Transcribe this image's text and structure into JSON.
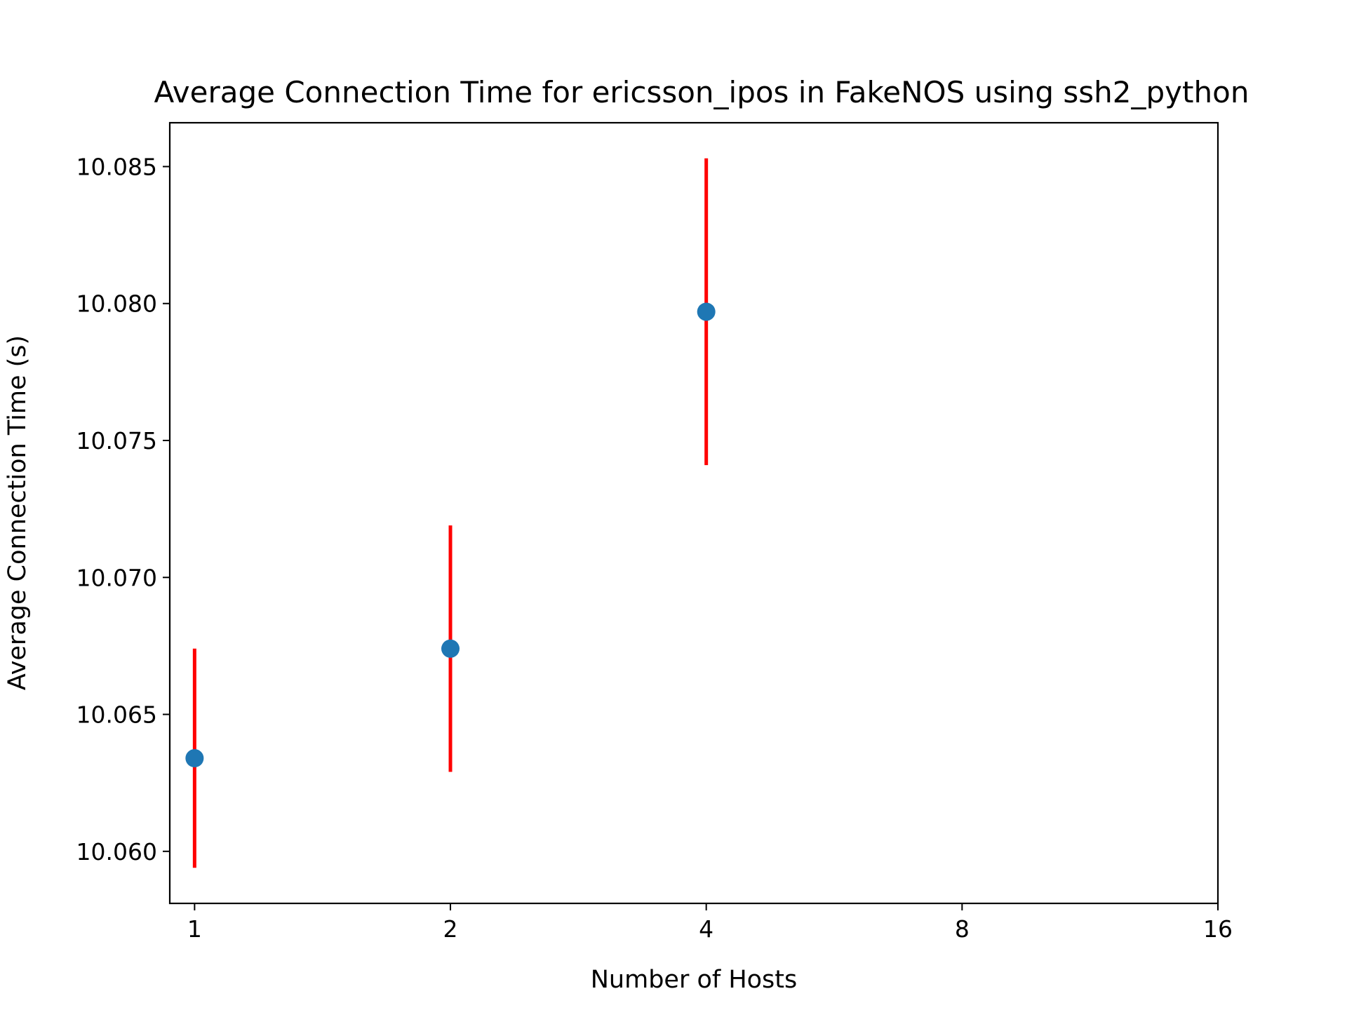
{
  "chart_data": {
    "type": "scatter",
    "title": "Average Connection Time for ericsson_ipos in FakeNOS using ssh2_python",
    "xlabel": "Number of Hosts",
    "ylabel": "Average Connection Time (s)",
    "x_scale": "log2",
    "x_ticks": [
      1,
      2,
      4,
      8,
      16
    ],
    "x_tick_labels": [
      "1",
      "2",
      "4",
      "8",
      "16"
    ],
    "xlim": [
      0.935,
      16
    ],
    "y_ticks": [
      10.06,
      10.065,
      10.07,
      10.075,
      10.08,
      10.085
    ],
    "y_tick_labels": [
      "10.060",
      "10.065",
      "10.070",
      "10.075",
      "10.080",
      "10.085"
    ],
    "ylim": [
      10.0581,
      10.0866
    ],
    "grid": false,
    "series": [
      {
        "x": [
          1,
          2,
          4
        ],
        "y": [
          10.0634,
          10.0674,
          10.0797
        ],
        "yerr": [
          0.004,
          0.0045,
          0.0056
        ],
        "point_color": "#1f77b4",
        "error_color": "#ff0000"
      }
    ]
  }
}
